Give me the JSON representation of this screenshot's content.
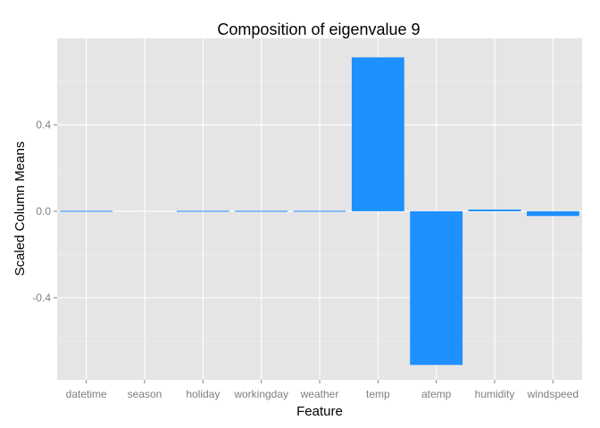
{
  "chart_data": {
    "type": "bar",
    "title": "Composition of eigenvalue 9",
    "xlabel": "Feature",
    "ylabel": "Scaled Column Means",
    "categories": [
      "datetime",
      "season",
      "holiday",
      "workingday",
      "weather",
      "temp",
      "atemp",
      "humidity",
      "windspeed"
    ],
    "values": [
      0.003,
      0.0,
      -0.003,
      0.003,
      -0.003,
      0.712,
      -0.711,
      0.008,
      -0.022
    ],
    "ylim": [
      -0.78,
      0.8
    ],
    "yticks": [
      -0.4,
      0.0,
      0.4
    ],
    "ytick_labels": [
      "-0.4",
      "0.0",
      "0.4"
    ],
    "grid": true,
    "legend": "none",
    "colors": {
      "bar": "#1E90FF",
      "panel": "#E5E5E5",
      "grid_major": "#FFFFFF",
      "grid_minor": "#F2F2F2",
      "tick_label": "#7F7F7F"
    }
  }
}
